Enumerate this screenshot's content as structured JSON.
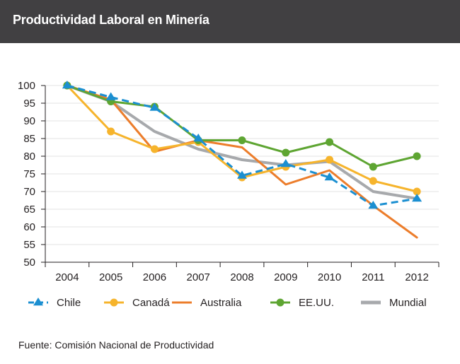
{
  "header": {
    "title": "Productividad Laboral en Minería",
    "bg_color": "#414042"
  },
  "source": "Fuente: Comisión Nacional de Productividad",
  "chart_data": {
    "type": "line",
    "title": "Productividad Laboral en Minería",
    "xlabel": "",
    "ylabel": "",
    "x": [
      "2004",
      "2005",
      "2006",
      "2007",
      "2008",
      "2009",
      "2010",
      "2011",
      "2012"
    ],
    "ylim": [
      50,
      100
    ],
    "yticks": [
      50,
      55,
      60,
      65,
      70,
      75,
      80,
      85,
      90,
      95,
      100
    ],
    "grid": true,
    "legend_position": "bottom",
    "series": [
      {
        "name": "Chile",
        "color": "#1b8fd1",
        "dashed": true,
        "marker": "triangle",
        "values": [
          100,
          96.7,
          93.7,
          85,
          74.5,
          77.8,
          74,
          66,
          68
        ]
      },
      {
        "name": "Canadá",
        "color": "#f6b42c",
        "dashed": false,
        "marker": "circle",
        "values": [
          100,
          87,
          82,
          84,
          74,
          77,
          79,
          73,
          70
        ]
      },
      {
        "name": "Australia",
        "color": "#ec7d2b",
        "dashed": false,
        "marker": "none",
        "values": [
          100,
          96,
          81.3,
          84.5,
          82.5,
          72,
          76,
          66,
          57
        ]
      },
      {
        "name": "EE.UU.",
        "color": "#5ea532",
        "dashed": false,
        "marker": "circle",
        "values": [
          100,
          95.5,
          94,
          84.5,
          84.5,
          81,
          84,
          77,
          80
        ]
      },
      {
        "name": "Mundial",
        "color": "#a7a9ac",
        "dashed": false,
        "marker": "none",
        "values": [
          100,
          95.5,
          87,
          82,
          79,
          77.5,
          78.5,
          70,
          68
        ]
      }
    ]
  }
}
